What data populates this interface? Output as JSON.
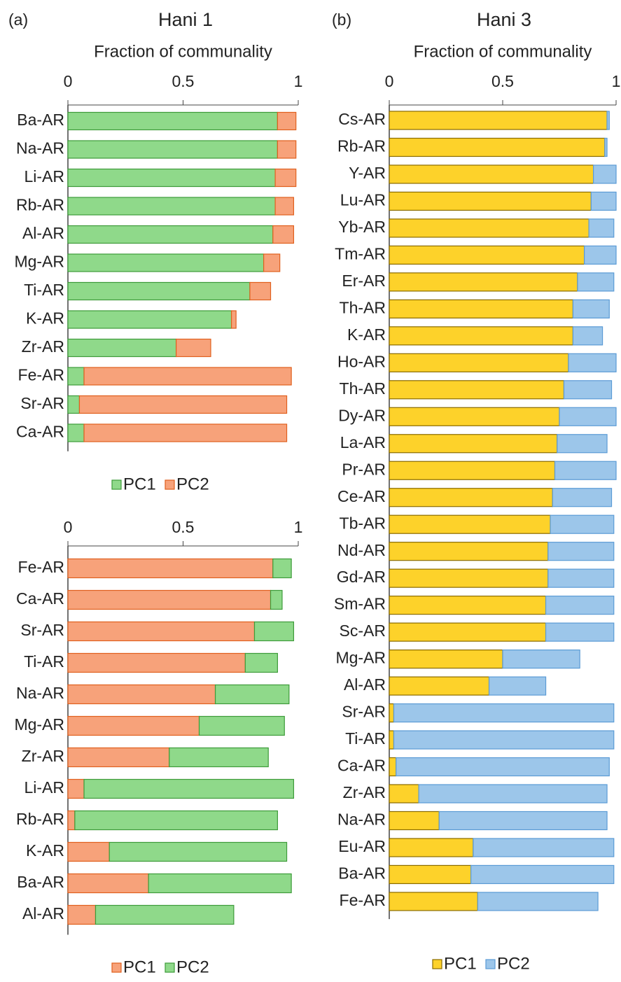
{
  "chart_data": [
    {
      "type": "bar",
      "orientation": "horizontal",
      "stacked": true,
      "panel_label": "(a)",
      "title": "Hani 1",
      "xlabel": "Fraction of communality",
      "categories": [
        "Ba-AR",
        "Na-AR",
        "Li-AR",
        "Rb-AR",
        "Al-AR",
        "Mg-AR",
        "Ti-AR",
        "K-AR",
        "Zr-AR",
        "Fe-AR",
        "Sr-AR",
        "Ca-AR"
      ],
      "series": [
        {
          "name": "PC1",
          "color": "#8fd98a",
          "edgecolor": "#3e9b3a",
          "values": [
            0.91,
            0.91,
            0.9,
            0.9,
            0.89,
            0.85,
            0.79,
            0.71,
            0.47,
            0.07,
            0.05,
            0.07
          ]
        },
        {
          "name": "PC2",
          "color": "#f7a27a",
          "edgecolor": "#e0601e",
          "values": [
            0.08,
            0.08,
            0.09,
            0.08,
            0.09,
            0.07,
            0.09,
            0.02,
            0.15,
            0.9,
            0.9,
            0.88
          ]
        }
      ],
      "xlim": [
        0,
        1
      ],
      "xticks": [
        0,
        0.5,
        1
      ]
    },
    {
      "type": "bar",
      "orientation": "horizontal",
      "stacked": true,
      "categories": [
        "Fe-AR",
        "Ca-AR",
        "Sr-AR",
        "Ti-AR",
        "Na-AR",
        "Mg-AR",
        "Zr-AR",
        "Li-AR",
        "Rb-AR",
        "K-AR",
        "Ba-AR",
        "Al-AR"
      ],
      "series": [
        {
          "name": "PC1",
          "color": "#f7a27a",
          "edgecolor": "#e0601e",
          "values": [
            0.89,
            0.88,
            0.81,
            0.77,
            0.64,
            0.57,
            0.44,
            0.07,
            0.03,
            0.18,
            0.35,
            0.12
          ]
        },
        {
          "name": "PC2",
          "color": "#8fd98a",
          "edgecolor": "#3e9b3a",
          "values": [
            0.08,
            0.05,
            0.17,
            0.14,
            0.32,
            0.37,
            0.43,
            0.91,
            0.88,
            0.77,
            0.62,
            0.6
          ]
        }
      ],
      "xlim": [
        0,
        1
      ],
      "xticks": [
        0,
        0.5,
        1
      ]
    },
    {
      "type": "bar",
      "orientation": "horizontal",
      "stacked": true,
      "panel_label": "(b)",
      "title": "Hani 3",
      "xlabel": "Fraction of communality",
      "categories": [
        "Cs-AR",
        "Rb-AR",
        "Y-AR",
        "Lu-AR",
        "Yb-AR",
        "Tm-AR",
        "Er-AR",
        "Th-AR",
        "K-AR",
        "Ho-AR",
        "Th-AR",
        "Dy-AR",
        "La-AR",
        "Pr-AR",
        "Ce-AR",
        "Tb-AR",
        "Nd-AR",
        "Gd-AR",
        "Sm-AR",
        "Sc-AR",
        "Mg-AR",
        "Al-AR",
        "Sr-AR",
        "Ti-AR",
        "Ca-AR",
        "Zr-AR",
        "Na-AR",
        "Eu-AR",
        "Ba-AR",
        "Fe-AR"
      ],
      "series": [
        {
          "name": "PC1",
          "color": "#fdd22a",
          "edgecolor": "#8a6b00",
          "values": [
            0.96,
            0.95,
            0.9,
            0.89,
            0.88,
            0.86,
            0.83,
            0.81,
            0.81,
            0.79,
            0.77,
            0.75,
            0.74,
            0.73,
            0.72,
            0.71,
            0.7,
            0.7,
            0.69,
            0.69,
            0.5,
            0.44,
            0.02,
            0.02,
            0.03,
            0.13,
            0.22,
            0.37,
            0.36,
            0.39
          ]
        },
        {
          "name": "PC2",
          "color": "#9cc6ea",
          "edgecolor": "#5b9bd5",
          "values": [
            0.01,
            0.01,
            0.1,
            0.11,
            0.11,
            0.14,
            0.16,
            0.16,
            0.13,
            0.21,
            0.21,
            0.25,
            0.22,
            0.27,
            0.26,
            0.28,
            0.29,
            0.29,
            0.3,
            0.3,
            0.34,
            0.25,
            0.97,
            0.97,
            0.94,
            0.83,
            0.74,
            0.62,
            0.63,
            0.53
          ]
        }
      ],
      "xlim": [
        0,
        1
      ],
      "xticks": [
        0,
        0.5,
        1
      ]
    }
  ]
}
